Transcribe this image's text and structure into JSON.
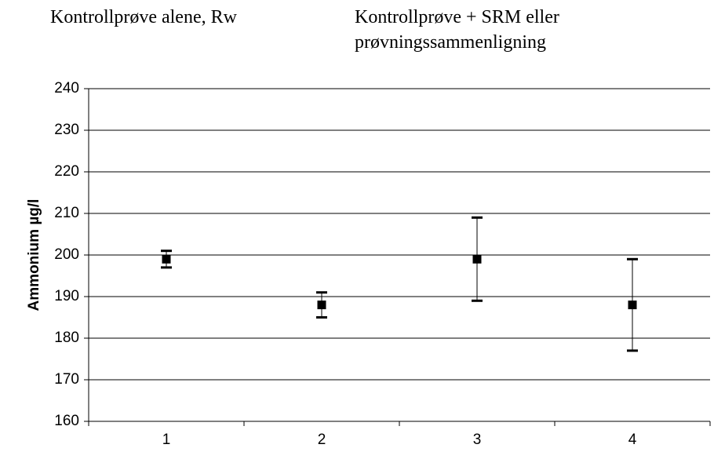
{
  "chart_data": {
    "type": "errorbar",
    "annotations": [
      "Kontrollprøve alene, Rw",
      "Kontrollprøve + SRM eller prøvningssammenligning"
    ],
    "y_label": "Ammonium µg/l",
    "categories": [
      "1",
      "2",
      "3",
      "4"
    ],
    "values": [
      199,
      188,
      199,
      188
    ],
    "errors": [
      2,
      3,
      10,
      11
    ],
    "color": "#000000",
    "ylim": [
      160,
      240
    ],
    "yticks": [
      160,
      170,
      180,
      190,
      200,
      210,
      220,
      230,
      240
    ],
    "grid": true
  }
}
